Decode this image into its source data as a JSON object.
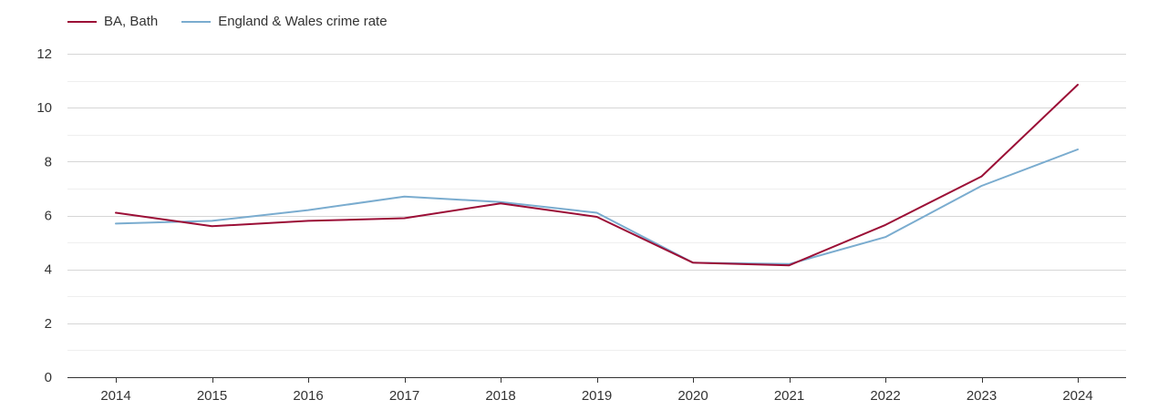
{
  "chart_data": {
    "type": "line",
    "title": "",
    "xlabel": "",
    "ylabel": "",
    "categories": [
      "2014",
      "2015",
      "2016",
      "2017",
      "2018",
      "2019",
      "2020",
      "2021",
      "2022",
      "2023",
      "2024"
    ],
    "ylim": [
      0,
      12
    ],
    "yticks": [
      0,
      2,
      4,
      6,
      8,
      10,
      12
    ],
    "grid": true,
    "legend_position": "top-left",
    "series": [
      {
        "name": "BA, Bath",
        "color": "#9b0e36",
        "values": [
          6.1,
          5.6,
          5.8,
          5.9,
          6.45,
          5.95,
          4.25,
          4.15,
          5.65,
          7.45,
          10.85
        ]
      },
      {
        "name": "England & Wales crime rate",
        "color": "#7aaccf",
        "values": [
          5.7,
          5.8,
          6.2,
          6.7,
          6.5,
          6.1,
          4.25,
          4.2,
          5.2,
          7.1,
          8.45
        ]
      }
    ]
  }
}
